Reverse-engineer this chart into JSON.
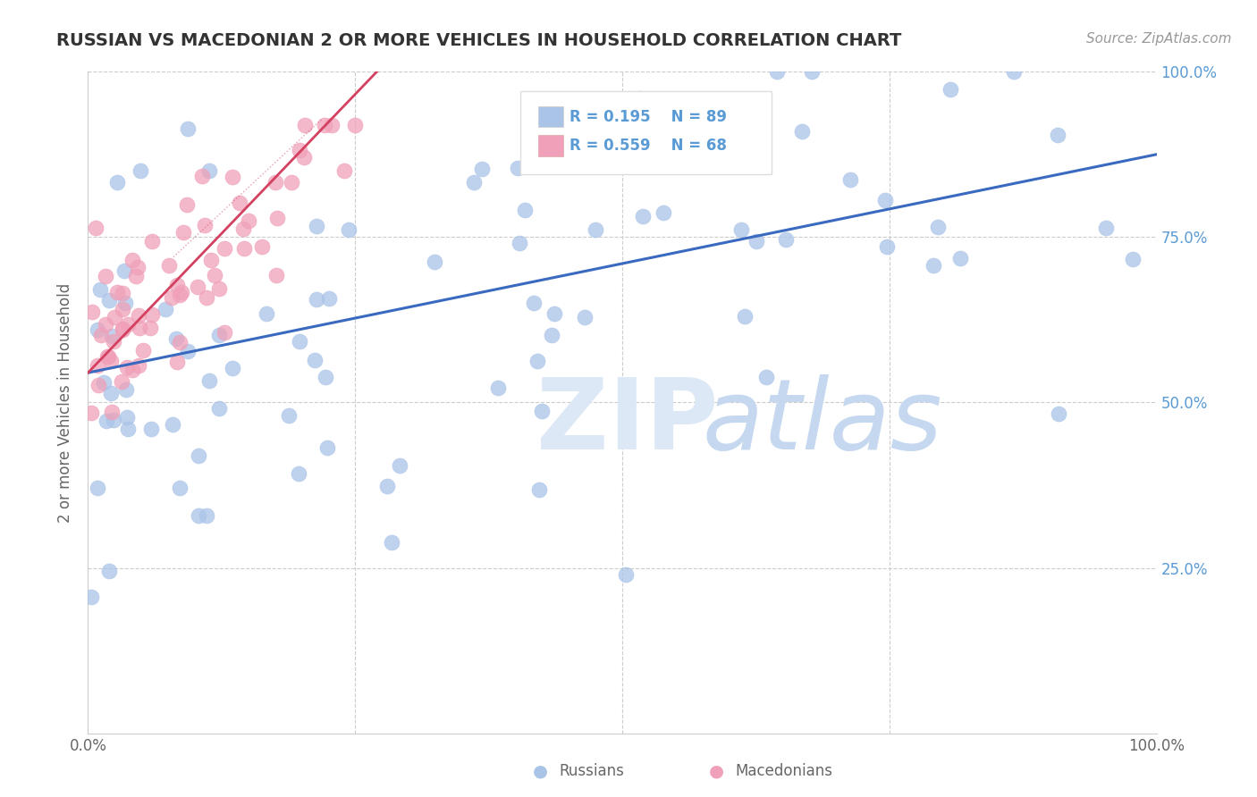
{
  "title": "RUSSIAN VS MACEDONIAN 2 OR MORE VEHICLES IN HOUSEHOLD CORRELATION CHART",
  "source": "Source: ZipAtlas.com",
  "ylabel": "2 or more Vehicles in Household",
  "xlim": [
    0.0,
    1.0
  ],
  "ylim": [
    0.0,
    1.0
  ],
  "russian_R": 0.195,
  "russian_N": 89,
  "macedonian_R": 0.559,
  "macedonian_N": 68,
  "russian_color": "#aac4e8",
  "macedonian_color": "#f0a0b8",
  "russian_line_color": "#3a6abf",
  "macedonian_line_color": "#d44060",
  "background_color": "#ffffff",
  "grid_color": "#cccccc",
  "right_tick_color": "#5b9bd5",
  "watermark_zip_color": "#dce8f5",
  "watermark_atlas_color": "#c5d8ef",
  "title_color": "#333333",
  "source_color": "#999999",
  "ylabel_color": "#666666",
  "tick_label_color": "#666666"
}
